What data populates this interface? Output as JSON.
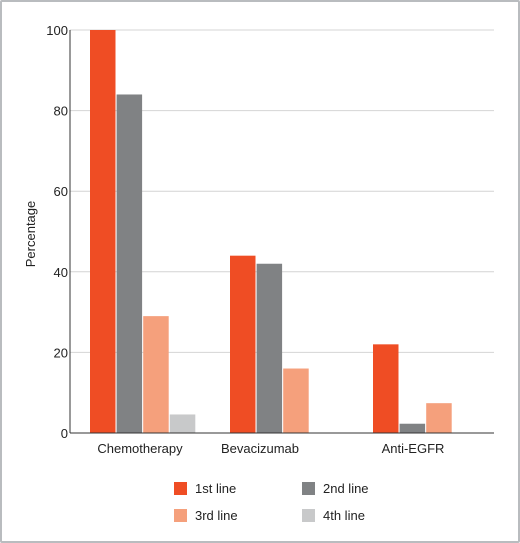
{
  "chart_data": {
    "type": "bar",
    "title": "",
    "xlabel": "",
    "ylabel": "Percentage",
    "ylim": [
      0,
      100
    ],
    "yticks": [
      0,
      20,
      40,
      60,
      80,
      100
    ],
    "grid": true,
    "legend_position": "bottom",
    "categories": [
      "Chemotherapy",
      "Bevacizumab",
      "Anti-EGFR"
    ],
    "series": [
      {
        "name": "1st line",
        "color": "#ef4d24",
        "values": [
          100,
          44,
          22
        ]
      },
      {
        "name": "2nd line",
        "color": "#808284",
        "values": [
          84,
          42,
          2.3
        ]
      },
      {
        "name": "3rd line",
        "color": "#f5a07c",
        "values": [
          29,
          16,
          7.4
        ]
      },
      {
        "name": "4th line",
        "color": "#c8c9ca",
        "values": [
          4.6,
          0,
          0
        ]
      }
    ]
  }
}
